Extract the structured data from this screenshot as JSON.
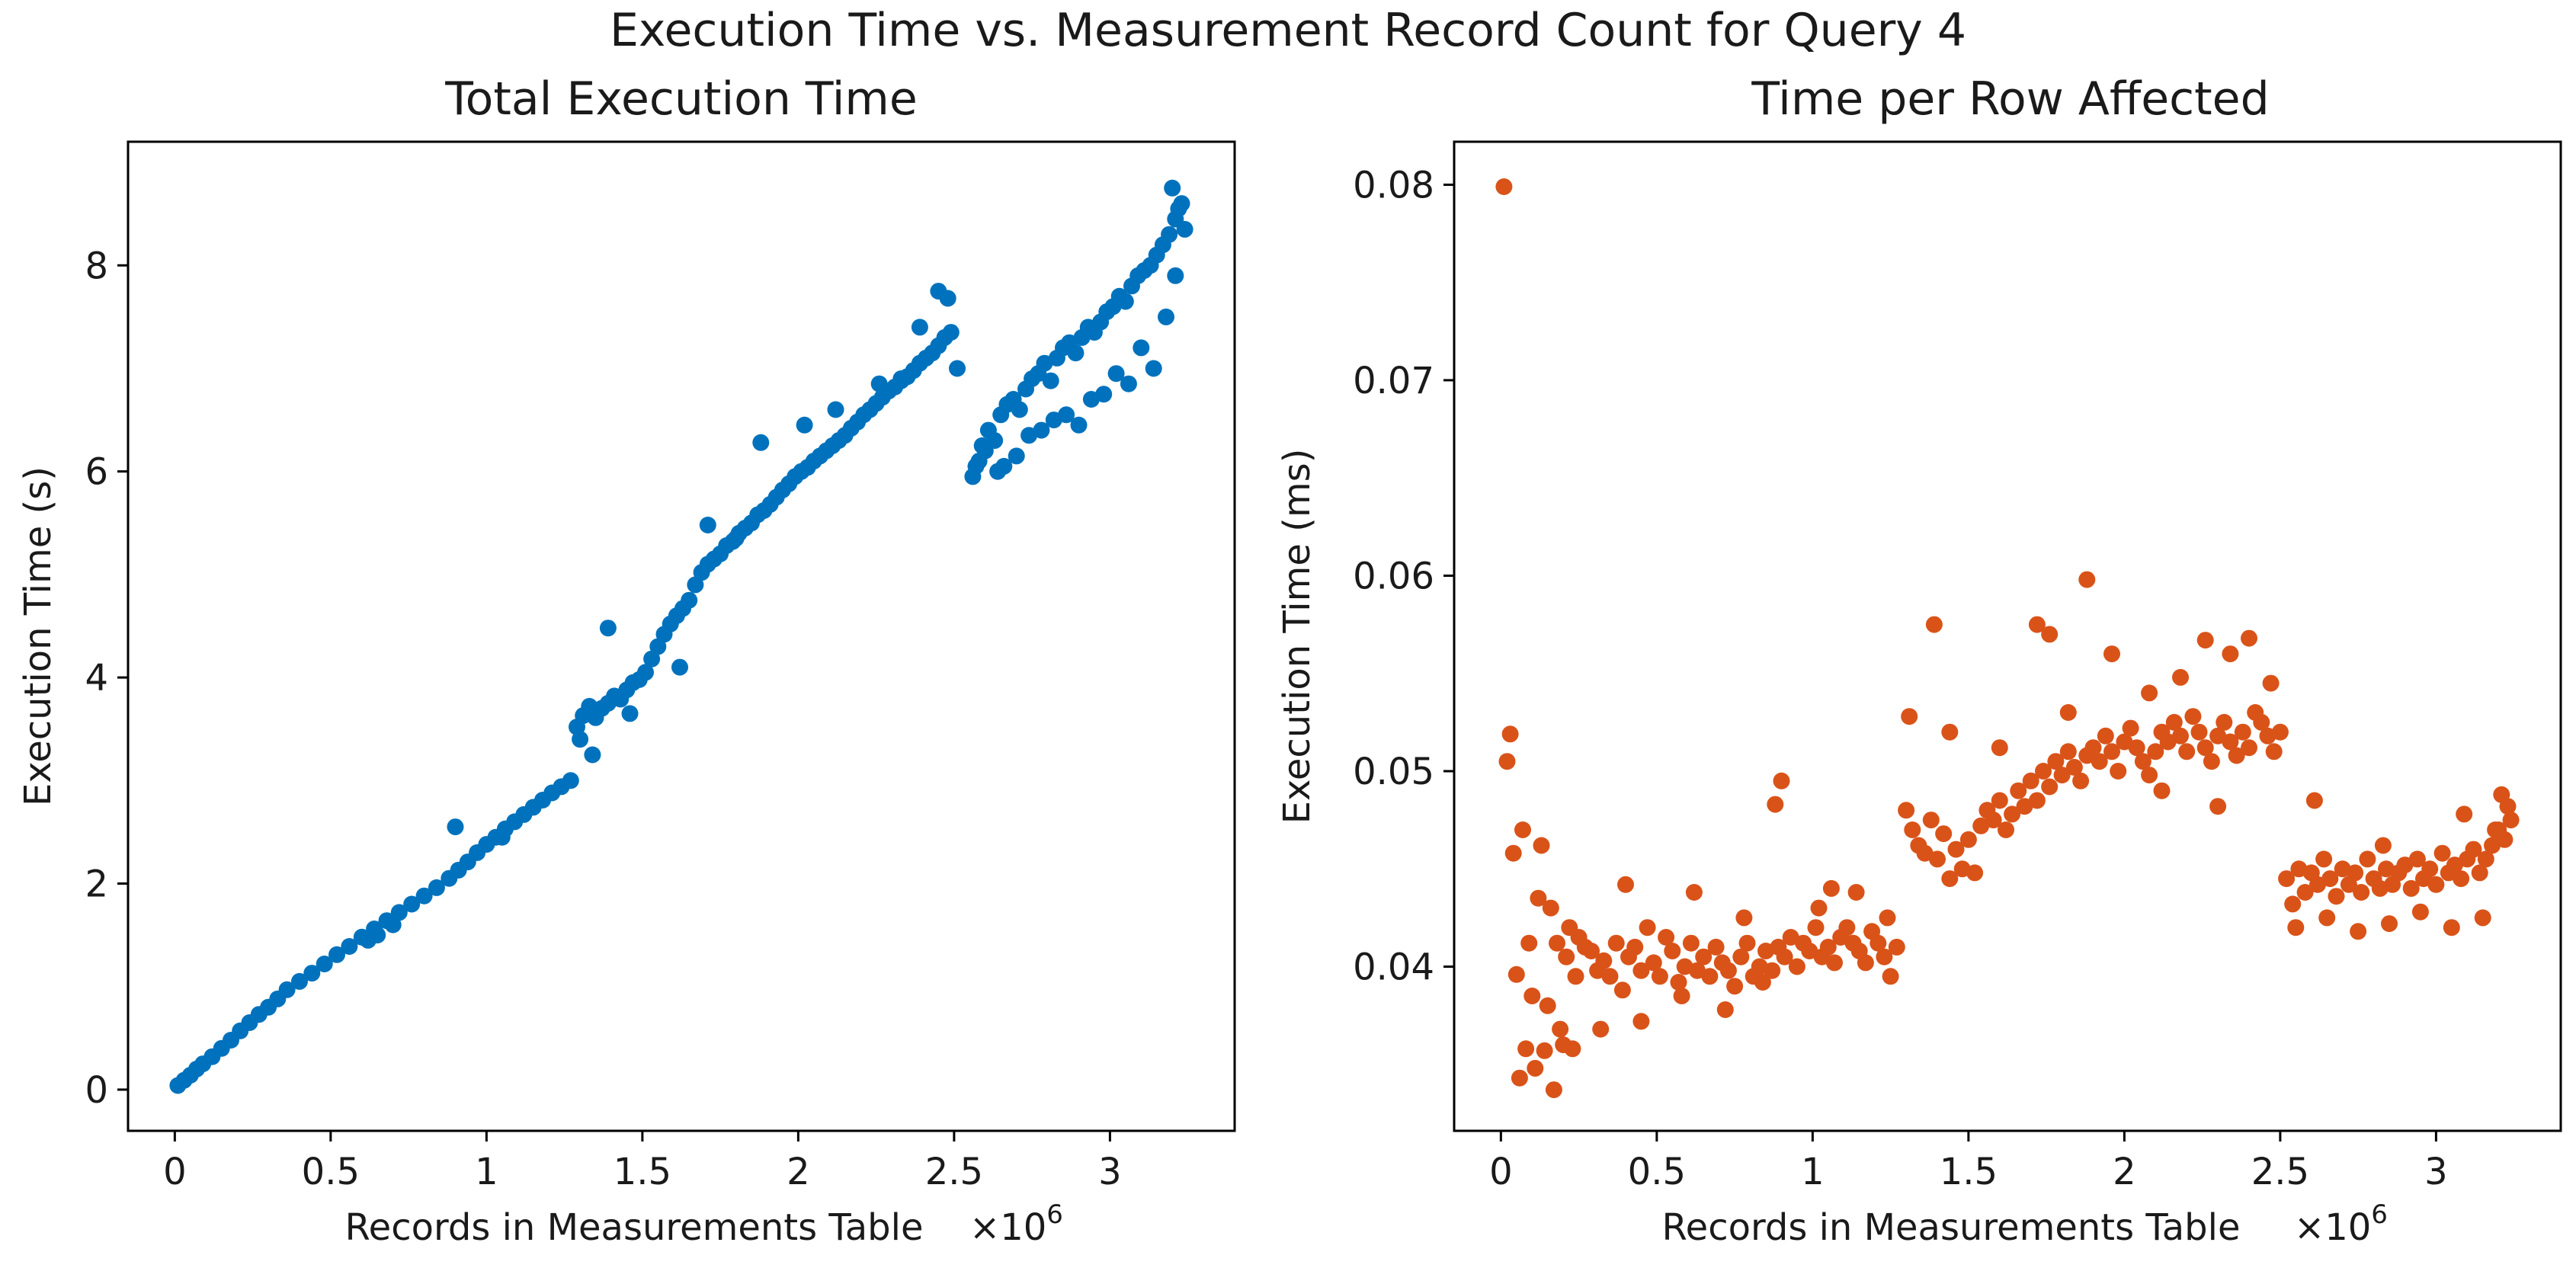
{
  "figure": {
    "suptitle": "Execution Time vs. Measurement Record Count for Query 4"
  },
  "chart_data": [
    {
      "type": "scatter",
      "title": "Total Execution Time",
      "xlabel": "Records in Measurements Table",
      "x_multiplier_label": "×10",
      "x_multiplier_exp": "6",
      "ylabel": "Execution Time (s)",
      "xlim": [
        -0.15,
        3.4
      ],
      "ylim": [
        -0.4,
        9.2
      ],
      "xticks": [
        0,
        0.5,
        1,
        1.5,
        2,
        2.5,
        3
      ],
      "xtick_labels": [
        "0",
        "0.5",
        "1",
        "1.5",
        "2",
        "2.5",
        "3"
      ],
      "yticks": [
        0,
        2,
        4,
        6,
        8
      ],
      "ytick_labels": [
        "0",
        "2",
        "4",
        "6",
        "8"
      ],
      "color": "#0072BD",
      "x": [
        0.01,
        0.03,
        0.05,
        0.07,
        0.09,
        0.12,
        0.15,
        0.18,
        0.21,
        0.24,
        0.27,
        0.3,
        0.33,
        0.36,
        0.4,
        0.44,
        0.48,
        0.52,
        0.56,
        0.6,
        0.64,
        0.68,
        0.72,
        0.76,
        0.8,
        0.84,
        0.88,
        0.91,
        0.94,
        0.97,
        1.0,
        1.03,
        1.06,
        1.09,
        1.12,
        1.15,
        1.18,
        1.21,
        1.24,
        1.27,
        0.62,
        0.65,
        0.7,
        0.9,
        1.05,
        1.29,
        1.31,
        1.33,
        1.35,
        1.37,
        1.39,
        1.41,
        1.43,
        1.45,
        1.47,
        1.49,
        1.51,
        1.53,
        1.55,
        1.57,
        1.59,
        1.61,
        1.63,
        1.65,
        1.67,
        1.69,
        1.71,
        1.73,
        1.75,
        1.77,
        1.79,
        1.81,
        1.83,
        1.85,
        1.87,
        1.89,
        1.91,
        1.93,
        1.95,
        1.97,
        1.99,
        2.01,
        2.03,
        2.05,
        2.07,
        2.09,
        2.11,
        2.13,
        2.15,
        2.17,
        2.19,
        2.21,
        2.23,
        2.25,
        2.27,
        2.29,
        2.31,
        2.33,
        2.35,
        2.37,
        2.39,
        2.41,
        2.43,
        2.45,
        2.47,
        2.49,
        2.51,
        1.39,
        1.88,
        2.45,
        2.48,
        2.33,
        1.71,
        1.8,
        2.26,
        2.39,
        1.34,
        1.3,
        1.46,
        1.62,
        2.02,
        2.12,
        2.57,
        2.59,
        2.61,
        2.63,
        2.65,
        2.67,
        2.69,
        2.71,
        2.73,
        2.75,
        2.77,
        2.79,
        2.81,
        2.83,
        2.85,
        2.87,
        2.89,
        2.91,
        2.93,
        2.95,
        2.97,
        2.99,
        3.01,
        3.03,
        3.05,
        3.07,
        3.09,
        3.11,
        3.13,
        3.15,
        3.17,
        3.19,
        3.21,
        3.23,
        3.22,
        3.24,
        3.2,
        2.56,
        2.58,
        2.6,
        2.66,
        2.74,
        2.82,
        2.9,
        2.98,
        3.06,
        3.14,
        3.18,
        3.21,
        2.64,
        2.7,
        2.78,
        2.86,
        2.94,
        3.02,
        3.1
      ],
      "y": [
        0.04,
        0.09,
        0.14,
        0.2,
        0.25,
        0.32,
        0.4,
        0.48,
        0.57,
        0.65,
        0.73,
        0.8,
        0.88,
        0.97,
        1.05,
        1.13,
        1.22,
        1.31,
        1.39,
        1.48,
        1.56,
        1.64,
        1.72,
        1.8,
        1.88,
        1.96,
        2.05,
        2.13,
        2.21,
        2.3,
        2.38,
        2.45,
        2.53,
        2.6,
        2.67,
        2.74,
        2.81,
        2.88,
        2.94,
        3.0,
        1.45,
        1.5,
        1.6,
        2.55,
        2.45,
        3.52,
        3.63,
        3.72,
        3.61,
        3.7,
        3.75,
        3.82,
        3.79,
        3.88,
        3.95,
        3.98,
        4.05,
        4.18,
        4.3,
        4.42,
        4.52,
        4.6,
        4.67,
        4.75,
        4.9,
        5.02,
        5.1,
        5.15,
        5.2,
        5.28,
        5.32,
        5.4,
        5.45,
        5.5,
        5.58,
        5.62,
        5.68,
        5.75,
        5.82,
        5.88,
        5.95,
        6.0,
        6.04,
        6.1,
        6.15,
        6.2,
        6.25,
        6.3,
        6.35,
        6.42,
        6.48,
        6.55,
        6.6,
        6.66,
        6.72,
        6.78,
        6.82,
        6.88,
        6.92,
        6.98,
        7.05,
        7.1,
        7.15,
        7.22,
        7.3,
        7.35,
        7.0,
        4.48,
        6.28,
        7.75,
        7.68,
        6.9,
        5.48,
        5.35,
        6.85,
        7.4,
        3.25,
        3.4,
        3.65,
        4.1,
        6.45,
        6.6,
        6.05,
        6.25,
        6.4,
        6.3,
        6.55,
        6.65,
        6.7,
        6.6,
        6.8,
        6.9,
        6.95,
        7.05,
        6.88,
        7.1,
        7.2,
        7.25,
        7.15,
        7.3,
        7.4,
        7.35,
        7.45,
        7.55,
        7.6,
        7.7,
        7.65,
        7.8,
        7.9,
        7.95,
        8.0,
        8.1,
        8.2,
        8.3,
        8.45,
        8.6,
        8.55,
        8.35,
        8.75,
        5.95,
        6.1,
        6.2,
        6.05,
        6.35,
        6.5,
        6.45,
        6.75,
        6.85,
        7.0,
        7.5,
        7.9,
        6.0,
        6.15,
        6.4,
        6.55,
        6.7,
        6.95,
        7.2
      ]
    },
    {
      "type": "scatter",
      "title": "Time per Row Affected",
      "xlabel": "Records in Measurements Table",
      "x_multiplier_label": "×10",
      "x_multiplier_exp": "6",
      "ylabel": "Execution Time (ms)",
      "xlim": [
        -0.15,
        3.4
      ],
      "ylim": [
        0.0316,
        0.0822
      ],
      "xticks": [
        0,
        0.5,
        1,
        1.5,
        2,
        2.5,
        3
      ],
      "xtick_labels": [
        "0",
        "0.5",
        "1",
        "1.5",
        "2",
        "2.5",
        "3"
      ],
      "yticks": [
        0.04,
        0.05,
        0.06,
        0.07,
        0.08
      ],
      "ytick_labels": [
        "0.04",
        "0.05",
        "0.06",
        "0.07",
        "0.08"
      ],
      "color": "#D95319",
      "x": [
        0.01,
        0.02,
        0.03,
        0.04,
        0.05,
        0.06,
        0.07,
        0.08,
        0.09,
        0.1,
        0.11,
        0.12,
        0.13,
        0.14,
        0.15,
        0.16,
        0.17,
        0.18,
        0.19,
        0.2,
        0.21,
        0.22,
        0.23,
        0.24,
        0.25,
        0.27,
        0.29,
        0.31,
        0.33,
        0.35,
        0.37,
        0.39,
        0.41,
        0.43,
        0.45,
        0.47,
        0.49,
        0.51,
        0.53,
        0.55,
        0.57,
        0.59,
        0.61,
        0.63,
        0.65,
        0.67,
        0.69,
        0.71,
        0.73,
        0.75,
        0.77,
        0.79,
        0.81,
        0.83,
        0.85,
        0.87,
        0.89,
        0.91,
        0.93,
        0.95,
        0.97,
        0.99,
        1.01,
        1.03,
        1.05,
        1.07,
        1.09,
        1.11,
        1.13,
        1.15,
        1.17,
        1.19,
        1.21,
        1.23,
        1.25,
        1.27,
        0.32,
        0.45,
        0.58,
        0.72,
        0.84,
        0.88,
        0.9,
        1.02,
        1.14,
        1.24,
        0.4,
        0.62,
        0.78,
        1.06,
        1.3,
        1.32,
        1.34,
        1.36,
        1.38,
        1.4,
        1.42,
        1.44,
        1.46,
        1.48,
        1.5,
        1.52,
        1.54,
        1.56,
        1.58,
        1.6,
        1.62,
        1.64,
        1.66,
        1.68,
        1.7,
        1.72,
        1.74,
        1.76,
        1.78,
        1.8,
        1.82,
        1.84,
        1.86,
        1.88,
        1.9,
        1.92,
        1.94,
        1.96,
        1.98,
        2.0,
        2.02,
        2.04,
        2.06,
        2.08,
        2.1,
        2.12,
        2.14,
        2.16,
        2.18,
        2.2,
        2.22,
        2.24,
        2.26,
        2.28,
        2.3,
        2.32,
        2.34,
        2.36,
        2.38,
        2.4,
        2.42,
        2.44,
        2.46,
        2.48,
        2.5,
        1.39,
        1.72,
        1.76,
        1.88,
        1.96,
        2.08,
        2.18,
        2.26,
        2.34,
        2.4,
        1.31,
        1.44,
        1.6,
        1.82,
        2.12,
        2.3,
        2.47,
        2.52,
        2.54,
        2.56,
        2.58,
        2.6,
        2.62,
        2.64,
        2.66,
        2.68,
        2.7,
        2.72,
        2.74,
        2.76,
        2.78,
        2.8,
        2.82,
        2.84,
        2.86,
        2.88,
        2.9,
        2.92,
        2.94,
        2.96,
        2.98,
        3.0,
        3.02,
        3.04,
        3.06,
        3.08,
        3.1,
        3.12,
        3.14,
        3.16,
        3.18,
        3.2,
        3.22,
        3.24,
        2.55,
        2.65,
        2.75,
        2.85,
        2.95,
        3.05,
        3.15,
        3.21,
        2.61,
        2.83,
        3.09,
        3.19,
        3.23
      ],
      "y": [
        0.0799,
        0.0505,
        0.0519,
        0.0458,
        0.0396,
        0.0343,
        0.047,
        0.0358,
        0.0412,
        0.0385,
        0.0348,
        0.0435,
        0.0462,
        0.0357,
        0.038,
        0.043,
        0.0337,
        0.0412,
        0.0368,
        0.036,
        0.0405,
        0.042,
        0.0358,
        0.0395,
        0.0415,
        0.041,
        0.0408,
        0.0398,
        0.0403,
        0.0395,
        0.0412,
        0.0388,
        0.0405,
        0.041,
        0.0398,
        0.042,
        0.0402,
        0.0395,
        0.0415,
        0.0408,
        0.0392,
        0.04,
        0.0412,
        0.0398,
        0.0405,
        0.0395,
        0.041,
        0.0402,
        0.0398,
        0.039,
        0.0405,
        0.0412,
        0.0395,
        0.04,
        0.0408,
        0.0398,
        0.041,
        0.0405,
        0.0415,
        0.04,
        0.0412,
        0.0408,
        0.042,
        0.0405,
        0.041,
        0.0402,
        0.0415,
        0.042,
        0.0412,
        0.0408,
        0.0402,
        0.0418,
        0.0412,
        0.0405,
        0.0395,
        0.041,
        0.0368,
        0.0372,
        0.0385,
        0.0378,
        0.0392,
        0.0483,
        0.0495,
        0.043,
        0.0438,
        0.0425,
        0.0442,
        0.0438,
        0.0425,
        0.044,
        0.048,
        0.047,
        0.0462,
        0.0458,
        0.0475,
        0.0455,
        0.0468,
        0.0445,
        0.046,
        0.045,
        0.0465,
        0.0448,
        0.0472,
        0.048,
        0.0475,
        0.0485,
        0.047,
        0.0478,
        0.049,
        0.0482,
        0.0495,
        0.0485,
        0.05,
        0.0492,
        0.0505,
        0.0498,
        0.051,
        0.0502,
        0.0495,
        0.0508,
        0.0512,
        0.0505,
        0.0518,
        0.051,
        0.05,
        0.0515,
        0.0522,
        0.0512,
        0.0505,
        0.0498,
        0.051,
        0.052,
        0.0515,
        0.0525,
        0.0518,
        0.051,
        0.0528,
        0.052,
        0.0512,
        0.0505,
        0.0518,
        0.0525,
        0.0515,
        0.0508,
        0.052,
        0.0512,
        0.053,
        0.0525,
        0.0518,
        0.051,
        0.052,
        0.0575,
        0.0575,
        0.057,
        0.0598,
        0.056,
        0.054,
        0.0548,
        0.0567,
        0.056,
        0.0568,
        0.0528,
        0.052,
        0.0512,
        0.053,
        0.049,
        0.0482,
        0.0545,
        0.0445,
        0.0432,
        0.045,
        0.0438,
        0.0448,
        0.0442,
        0.0455,
        0.0445,
        0.0436,
        0.045,
        0.0442,
        0.0448,
        0.0438,
        0.0455,
        0.0445,
        0.044,
        0.045,
        0.0442,
        0.0448,
        0.0452,
        0.044,
        0.0455,
        0.0445,
        0.045,
        0.0442,
        0.0458,
        0.0448,
        0.0452,
        0.0445,
        0.0455,
        0.046,
        0.0448,
        0.0455,
        0.0462,
        0.047,
        0.0465,
        0.0475,
        0.042,
        0.0425,
        0.0418,
        0.0422,
        0.0428,
        0.042,
        0.0425,
        0.0488,
        0.0485,
        0.0462,
        0.0478,
        0.047,
        0.0482
      ]
    }
  ]
}
